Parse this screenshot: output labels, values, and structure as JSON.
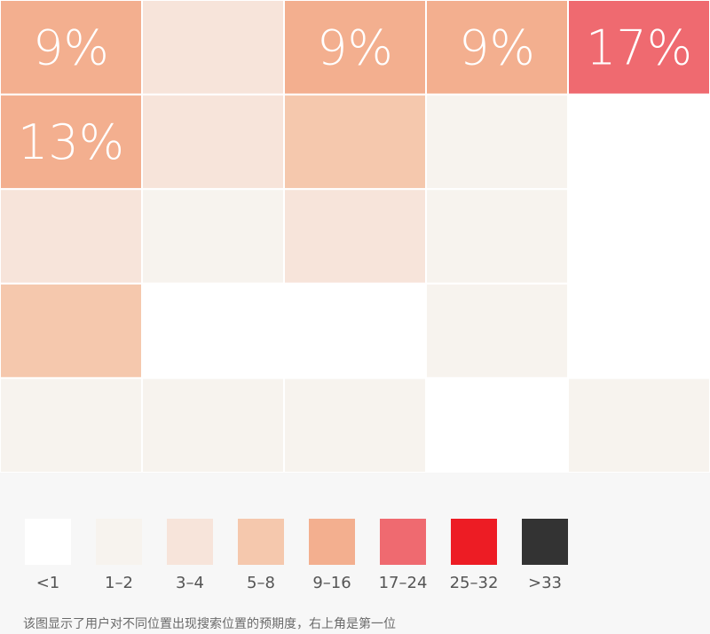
{
  "chart_data": {
    "type": "heatmap",
    "cols": 5,
    "rows": 5,
    "levels": [
      {
        "label": "<1",
        "color": "#ffffff"
      },
      {
        "label": "1–2",
        "color": "#f7f3ee"
      },
      {
        "label": "3–4",
        "color": "#f7e4da"
      },
      {
        "label": "5–8",
        "color": "#f5c8ad"
      },
      {
        "label": "9–16",
        "color": "#f3af8f"
      },
      {
        "label": "17–24",
        "color": "#ef6a70"
      },
      {
        "label": "25–32",
        "color": "#ed1c24"
      },
      {
        "label": ">33",
        "color": "#333333"
      }
    ],
    "cells": [
      [
        4,
        2,
        4,
        4,
        5
      ],
      [
        4,
        2,
        3,
        1,
        0
      ],
      [
        2,
        1,
        2,
        1,
        0
      ],
      [
        3,
        0,
        0,
        1,
        0
      ],
      [
        1,
        1,
        1,
        0,
        1
      ]
    ],
    "cell_labels": [
      [
        "9%",
        "",
        "9%",
        "9%",
        "17%"
      ],
      [
        "13%",
        "",
        "",
        "",
        ""
      ],
      [
        "",
        "",
        "",
        "",
        ""
      ],
      [
        "",
        "",
        "",
        "",
        ""
      ],
      [
        "",
        "",
        "",
        "",
        ""
      ]
    ]
  },
  "footnote": "该图显示了用户对不同位置出现搜索位置的预期度，右上角是第一位"
}
